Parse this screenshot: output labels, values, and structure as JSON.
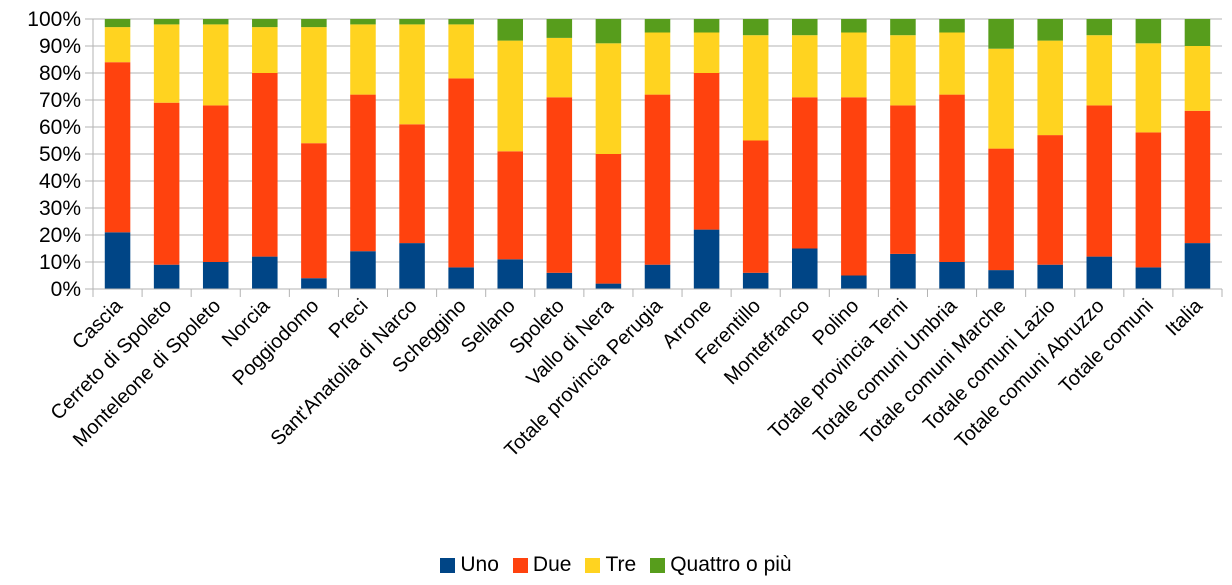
{
  "chart_data": {
    "type": "bar",
    "stacked": "percent",
    "title": "",
    "xlabel": "",
    "ylabel": "",
    "ylim": [
      0,
      100
    ],
    "y_ticks": [
      "0%",
      "10%",
      "20%",
      "30%",
      "40%",
      "50%",
      "60%",
      "70%",
      "80%",
      "90%",
      "100%"
    ],
    "grid": true,
    "legend_position": "bottom",
    "categories": [
      "Cascia",
      "Cerreto di Spoleto",
      "Monteleone di Spoleto",
      "Norcia",
      "Poggiodomo",
      "Preci",
      "Sant'Anatolia di Narco",
      "Scheggino",
      "Sellano",
      "Spoleto",
      "Vallo di Nera",
      "Totale provincia Perugia",
      "Arrone",
      "Ferentillo",
      "Montefranco",
      "Polino",
      "Totale provincia Terni",
      "Totale comuni Umbria",
      "Totale comuni Marche",
      "Totale comuni Lazio",
      "Totale comuni Abruzzo",
      "Totale comuni",
      "Italia"
    ],
    "series": [
      {
        "name": "Uno",
        "color": "#004586",
        "values": [
          21,
          9,
          10,
          12,
          4,
          14,
          17,
          8,
          11,
          6,
          2,
          9,
          22,
          6,
          15,
          5,
          13,
          10,
          7,
          9,
          12,
          8,
          17
        ]
      },
      {
        "name": "Due",
        "color": "#ff420e",
        "values": [
          63,
          60,
          58,
          68,
          50,
          58,
          44,
          70,
          40,
          65,
          48,
          63,
          58,
          49,
          56,
          66,
          55,
          62,
          45,
          48,
          56,
          50,
          49
        ]
      },
      {
        "name": "Tre",
        "color": "#ffd320",
        "values": [
          13,
          29,
          30,
          17,
          43,
          26,
          37,
          20,
          41,
          22,
          41,
          23,
          15,
          39,
          23,
          24,
          26,
          23,
          37,
          35,
          26,
          33,
          24
        ]
      },
      {
        "name": "Quattro o più",
        "color": "#579d1c",
        "values": [
          3,
          2,
          2,
          3,
          3,
          2,
          2,
          2,
          8,
          7,
          9,
          5,
          5,
          6,
          6,
          5,
          6,
          5,
          11,
          8,
          6,
          9,
          10
        ]
      }
    ]
  }
}
